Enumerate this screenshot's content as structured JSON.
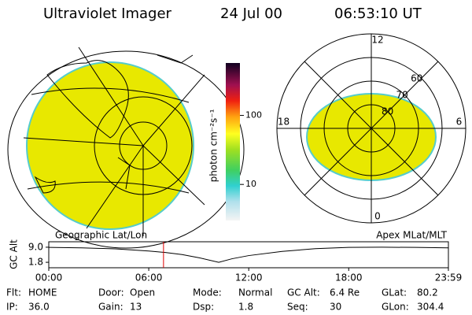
{
  "header": {
    "title": "Ultraviolet Imager",
    "date": "24 Jul 00",
    "time": "06:53:10 UT"
  },
  "colorbar": {
    "label": "photon cm⁻²s⁻¹",
    "scale": "log",
    "lim": [
      3,
      575
    ],
    "ticks": [
      100,
      10
    ]
  },
  "polar": {
    "mlt_labels": [
      12,
      18,
      6,
      0
    ],
    "lat_rings": [
      80,
      70,
      60
    ],
    "lat_min": 50
  },
  "timeline": {
    "ylabel": "GC Alt",
    "left_title": "Geographic Lat/Lon",
    "right_title": "Apex MLat/MLT",
    "ylim": [
      -0.8,
      11.6
    ],
    "yticks": [
      {
        "value": 9,
        "label": "9.0"
      },
      {
        "value": 1.8,
        "label": "1.8"
      }
    ],
    "xlim": [
      0,
      23.983
    ],
    "xticks": [
      {
        "value": 0,
        "label": "00:00"
      },
      {
        "value": 6,
        "label": "06:00"
      },
      {
        "value": 12,
        "label": "12:00"
      },
      {
        "value": 18,
        "label": "18:00"
      },
      {
        "value": 23.983,
        "label": "23:59"
      }
    ],
    "x": [
      0,
      2,
      4,
      6,
      7,
      8,
      9,
      10.2,
      11,
      12,
      14,
      16,
      18,
      20,
      22,
      23.983
    ],
    "values": [
      8.9,
      8.7,
      8.2,
      7.2,
      6.5,
      5.5,
      4,
      1.8,
      3.5,
      5,
      7,
      8.3,
      8.9,
      9,
      8.9,
      8.7
    ],
    "current_time": 6.886
  },
  "footer": {
    "rows": [
      [
        [
          "Flt:",
          "HOME"
        ],
        [
          "Door:",
          "Open"
        ],
        [
          "Mode:",
          "Normal"
        ],
        [
          "GC Alt:",
          "6.4 Re"
        ],
        [
          "GLat:",
          "80.2"
        ]
      ],
      [
        [
          "IP:",
          "36.0"
        ],
        [
          "Gain:",
          "13"
        ],
        [
          "Dsp:",
          "1.8"
        ],
        [
          "Seq:",
          "30"
        ],
        [
          "GLon:",
          "304.4"
        ]
      ]
    ]
  }
}
